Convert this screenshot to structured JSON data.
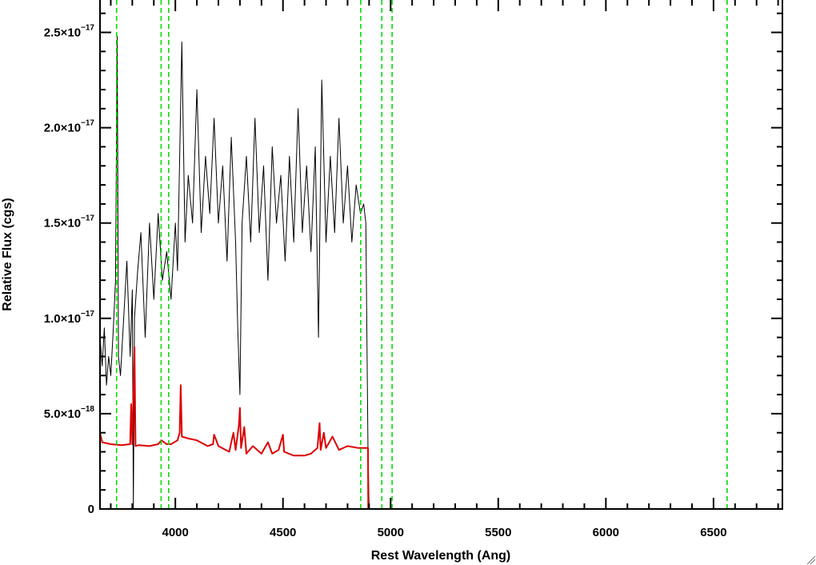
{
  "chart_data": {
    "type": "line",
    "title": "",
    "xlabel": "Rest Wavelength (Ang)",
    "ylabel": "Relative Flux (cgs)",
    "xlim": [
      3650,
      6820
    ],
    "ylim": [
      0,
      2.67e-17
    ],
    "grid": false,
    "legend": "none",
    "x_ticks": [
      {
        "value": 4000,
        "label": "4000"
      },
      {
        "value": 4500,
        "label": "4500"
      },
      {
        "value": 5000,
        "label": "5000"
      },
      {
        "value": 5500,
        "label": "5500"
      },
      {
        "value": 6000,
        "label": "6000"
      },
      {
        "value": 6500,
        "label": "6500"
      }
    ],
    "y_ticks": [
      {
        "value": 0,
        "mant": "0",
        "exp": ""
      },
      {
        "value": 5e-18,
        "mant": "5.0×10",
        "exp": "−18"
      },
      {
        "value": 1e-17,
        "mant": "1.0×10",
        "exp": "−17"
      },
      {
        "value": 1.5e-17,
        "mant": "1.5×10",
        "exp": "−17"
      },
      {
        "value": 2e-17,
        "mant": "2.0×10",
        "exp": "−17"
      },
      {
        "value": 2.5e-17,
        "mant": "2.5×10",
        "exp": "−17"
      }
    ],
    "series": [
      {
        "color": "#000000",
        "points": [
          [
            3650,
            9e-18
          ],
          [
            3660,
            7.5e-18
          ],
          [
            3670,
            9.5e-18
          ],
          [
            3680,
            6.5e-18
          ],
          [
            3690,
            8e-18
          ],
          [
            3700,
            7e-18
          ],
          [
            3712,
            9.5e-18
          ],
          [
            3722,
            1.2e-17
          ],
          [
            3730,
            2.48e-17
          ],
          [
            3736,
            8e-18
          ],
          [
            3745,
            7e-18
          ],
          [
            3760,
            1e-17
          ],
          [
            3775,
            1.3e-17
          ],
          [
            3790,
            8e-18
          ],
          [
            3800,
            1.15e-17
          ],
          [
            3805,
            0
          ],
          [
            3810,
            1e-17
          ],
          [
            3825,
            1.25e-17
          ],
          [
            3840,
            1.45e-17
          ],
          [
            3860,
            9e-18
          ],
          [
            3880,
            1.5e-17
          ],
          [
            3900,
            1.1e-17
          ],
          [
            3920,
            1.55e-17
          ],
          [
            3940,
            1.2e-17
          ],
          [
            3960,
            1.35e-17
          ],
          [
            3980,
            1.1e-17
          ],
          [
            4000,
            1.5e-17
          ],
          [
            4010,
            1.25e-17
          ],
          [
            4030,
            2.45e-17
          ],
          [
            4045,
            1.4e-17
          ],
          [
            4060,
            1.75e-17
          ],
          [
            4080,
            1.5e-17
          ],
          [
            4100,
            2.2e-17
          ],
          [
            4120,
            1.45e-17
          ],
          [
            4140,
            1.85e-17
          ],
          [
            4160,
            1.55e-17
          ],
          [
            4180,
            2.05e-17
          ],
          [
            4200,
            1.5e-17
          ],
          [
            4220,
            1.8e-17
          ],
          [
            4240,
            1.3e-17
          ],
          [
            4260,
            1.95e-17
          ],
          [
            4280,
            1.4e-17
          ],
          [
            4290,
            9.5e-18
          ],
          [
            4300,
            6e-18
          ],
          [
            4310,
            1.5e-17
          ],
          [
            4330,
            1.85e-17
          ],
          [
            4350,
            1.4e-17
          ],
          [
            4370,
            2.05e-17
          ],
          [
            4390,
            1.45e-17
          ],
          [
            4410,
            1.8e-17
          ],
          [
            4430,
            1.2e-17
          ],
          [
            4450,
            1.9e-17
          ],
          [
            4470,
            1.5e-17
          ],
          [
            4490,
            1.75e-17
          ],
          [
            4510,
            1.3e-17
          ],
          [
            4530,
            1.85e-17
          ],
          [
            4550,
            1.4e-17
          ],
          [
            4570,
            2.1e-17
          ],
          [
            4590,
            1.45e-17
          ],
          [
            4610,
            1.8e-17
          ],
          [
            4630,
            1.35e-17
          ],
          [
            4650,
            1.9e-17
          ],
          [
            4665,
            9e-18
          ],
          [
            4680,
            2.25e-17
          ],
          [
            4700,
            1.4e-17
          ],
          [
            4720,
            1.85e-17
          ],
          [
            4740,
            1.45e-17
          ],
          [
            4760,
            2.05e-17
          ],
          [
            4780,
            1.5e-17
          ],
          [
            4800,
            1.8e-17
          ],
          [
            4820,
            1.4e-17
          ],
          [
            4840,
            1.7e-17
          ],
          [
            4860,
            1.55e-17
          ],
          [
            4875,
            1.6e-17
          ],
          [
            4885,
            1.5e-17
          ],
          [
            4895,
            3e-18
          ],
          [
            4900,
            0
          ],
          [
            4920,
            0
          ],
          [
            5000,
            0
          ],
          [
            6820,
            0
          ]
        ]
      },
      {
        "color": "#dd0000",
        "points": [
          [
            3650,
            4e-18
          ],
          [
            3660,
            3.5e-18
          ],
          [
            3700,
            3.4e-18
          ],
          [
            3750,
            3.35e-18
          ],
          [
            3790,
            3.4e-18
          ],
          [
            3795,
            5.5e-18
          ],
          [
            3800,
            3.4e-18
          ],
          [
            3810,
            8.5e-18
          ],
          [
            3815,
            3.3e-18
          ],
          [
            3830,
            3.35e-18
          ],
          [
            3880,
            3.3e-18
          ],
          [
            3920,
            3.4e-18
          ],
          [
            3935,
            3.6e-18
          ],
          [
            3960,
            3.4e-18
          ],
          [
            3980,
            3.4e-18
          ],
          [
            4010,
            3.6e-18
          ],
          [
            4020,
            4e-18
          ],
          [
            4025,
            6.5e-18
          ],
          [
            4030,
            3.8e-18
          ],
          [
            4060,
            3.7e-18
          ],
          [
            4100,
            3.6e-18
          ],
          [
            4150,
            3.3e-18
          ],
          [
            4175,
            3.4e-18
          ],
          [
            4180,
            3.9e-18
          ],
          [
            4200,
            3.3e-18
          ],
          [
            4250,
            3e-18
          ],
          [
            4270,
            4e-18
          ],
          [
            4280,
            3.1e-18
          ],
          [
            4295,
            4.4e-18
          ],
          [
            4300,
            5.3e-18
          ],
          [
            4305,
            3.2e-18
          ],
          [
            4320,
            4.3e-18
          ],
          [
            4330,
            2.9e-18
          ],
          [
            4360,
            3.3e-18
          ],
          [
            4400,
            2.9e-18
          ],
          [
            4430,
            3.5e-18
          ],
          [
            4450,
            2.9e-18
          ],
          [
            4480,
            3.1e-18
          ],
          [
            4500,
            3.9e-18
          ],
          [
            4505,
            3e-18
          ],
          [
            4550,
            2.8e-18
          ],
          [
            4600,
            2.8e-18
          ],
          [
            4630,
            2.9e-18
          ],
          [
            4660,
            3.2e-18
          ],
          [
            4670,
            4.5e-18
          ],
          [
            4675,
            3.1e-18
          ],
          [
            4690,
            4e-18
          ],
          [
            4700,
            3.2e-18
          ],
          [
            4730,
            3.8e-18
          ],
          [
            4760,
            3.1e-18
          ],
          [
            4800,
            3.3e-18
          ],
          [
            4850,
            3.2e-18
          ],
          [
            4895,
            3.2e-18
          ],
          [
            4896,
            0
          ],
          [
            5000,
            0
          ],
          [
            6820,
            0
          ]
        ]
      }
    ],
    "reference_lines": {
      "color": "#00dd00",
      "style": "dashed",
      "x": [
        3727,
        3934,
        3969,
        4861,
        4959,
        5007,
        6563
      ]
    }
  }
}
